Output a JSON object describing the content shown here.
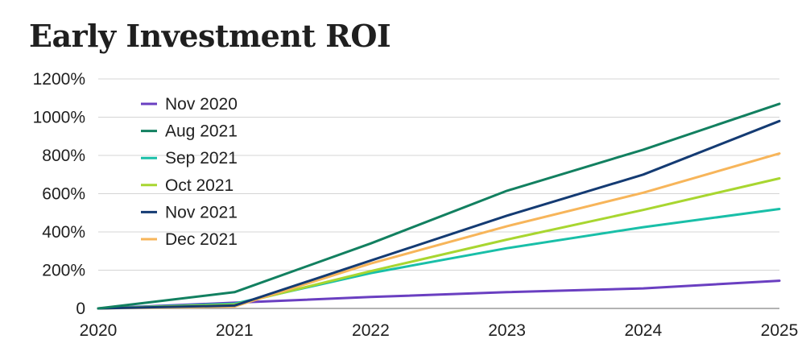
{
  "chart_data": {
    "type": "line",
    "title": "Early Investment ROI",
    "x": [
      "2020",
      "2021",
      "2022",
      "2023",
      "2024",
      "2025"
    ],
    "ylim": [
      0,
      1200
    ],
    "y_ticks": [
      {
        "value": 0,
        "label": "0"
      },
      {
        "value": 200,
        "label": "200%"
      },
      {
        "value": 400,
        "label": "400%"
      },
      {
        "value": 600,
        "label": "600%"
      },
      {
        "value": 800,
        "label": "800%"
      },
      {
        "value": 1000,
        "label": "1000%"
      },
      {
        "value": 1200,
        "label": "1200%"
      }
    ],
    "grid": true,
    "legend_position": "top-left",
    "series": [
      {
        "name": "Nov 2020",
        "color": "#6a3fc1",
        "values": [
          0,
          30,
          60,
          85,
          105,
          145
        ]
      },
      {
        "name": "Aug 2021",
        "color": "#128060",
        "values": [
          0,
          85,
          340,
          615,
          830,
          1070
        ]
      },
      {
        "name": "Sep 2021",
        "color": "#19bfa8",
        "values": [
          0,
          25,
          185,
          315,
          425,
          520
        ]
      },
      {
        "name": "Oct 2021",
        "color": "#a8d630",
        "values": [
          0,
          20,
          195,
          360,
          515,
          680
        ]
      },
      {
        "name": "Nov 2021",
        "color": "#143b73",
        "values": [
          0,
          15,
          250,
          485,
          700,
          980
        ]
      },
      {
        "name": "Dec 2021",
        "color": "#f7b55a",
        "values": [
          0,
          10,
          235,
          430,
          605,
          810
        ]
      }
    ]
  }
}
